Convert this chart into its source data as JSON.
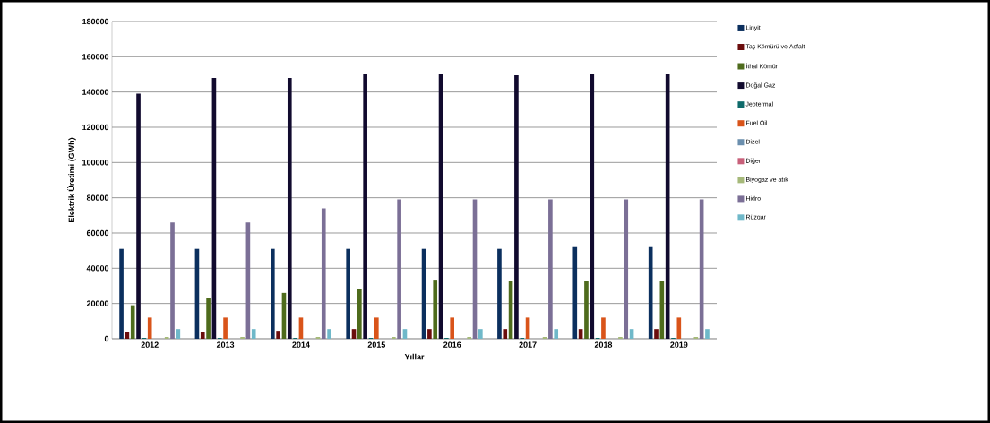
{
  "chart_data": {
    "type": "bar",
    "xlabel": "Yıllar",
    "ylabel": "Elektrik Üretimi (GWh)",
    "categories": [
      "2012",
      "2013",
      "2014",
      "2015",
      "2016",
      "2017",
      "2018",
      "2019"
    ],
    "series": [
      {
        "name": "Linyit",
        "color": "#0b2f5e",
        "values": [
          51000,
          51000,
          51000,
          51000,
          51000,
          51000,
          52000,
          52000
        ]
      },
      {
        "name": "Taş Kömürü ve Asfalt",
        "color": "#6b0d0d",
        "values": [
          4000,
          4000,
          4500,
          5500,
          5500,
          5500,
          5500,
          5500
        ]
      },
      {
        "name": "İthal Kömür",
        "color": "#4e6b1c",
        "values": [
          19000,
          23000,
          26000,
          28000,
          33500,
          33000,
          33000,
          33000
        ]
      },
      {
        "name": "Doğal Gaz",
        "color": "#110a2e",
        "values": [
          139000,
          148000,
          148000,
          150000,
          150000,
          149500,
          150000,
          150000
        ]
      },
      {
        "name": "Jeotermal",
        "color": "#0e6a6a",
        "values": [
          500,
          500,
          500,
          500,
          500,
          500,
          500,
          500
        ]
      },
      {
        "name": "Fuel Oil",
        "color": "#d9541a",
        "values": [
          12000,
          12000,
          12000,
          12000,
          12000,
          12000,
          12000,
          12000
        ]
      },
      {
        "name": "Dizel",
        "color": "#6b8fae",
        "values": [
          0,
          0,
          0,
          0,
          0,
          0,
          0,
          0
        ]
      },
      {
        "name": "Diğer",
        "color": "#c8607a",
        "values": [
          0,
          0,
          0,
          0,
          0,
          0,
          0,
          0
        ]
      },
      {
        "name": "Biyogaz ve atık",
        "color": "#a6b97a",
        "values": [
          1000,
          1000,
          1000,
          1000,
          1000,
          1000,
          1000,
          1000
        ]
      },
      {
        "name": "Hidro",
        "color": "#7b6f96",
        "values": [
          66000,
          66000,
          74000,
          79000,
          79000,
          79000,
          79000,
          79000
        ]
      },
      {
        "name": "Rüzgar",
        "color": "#6fb8c9",
        "values": [
          5500,
          5500,
          5500,
          5500,
          5500,
          5500,
          5500,
          5500
        ]
      }
    ],
    "ylim": [
      0,
      180000
    ],
    "yticks": [
      0,
      20000,
      40000,
      60000,
      80000,
      100000,
      120000,
      140000,
      160000,
      180000
    ],
    "grid": "y",
    "legend": "right"
  }
}
